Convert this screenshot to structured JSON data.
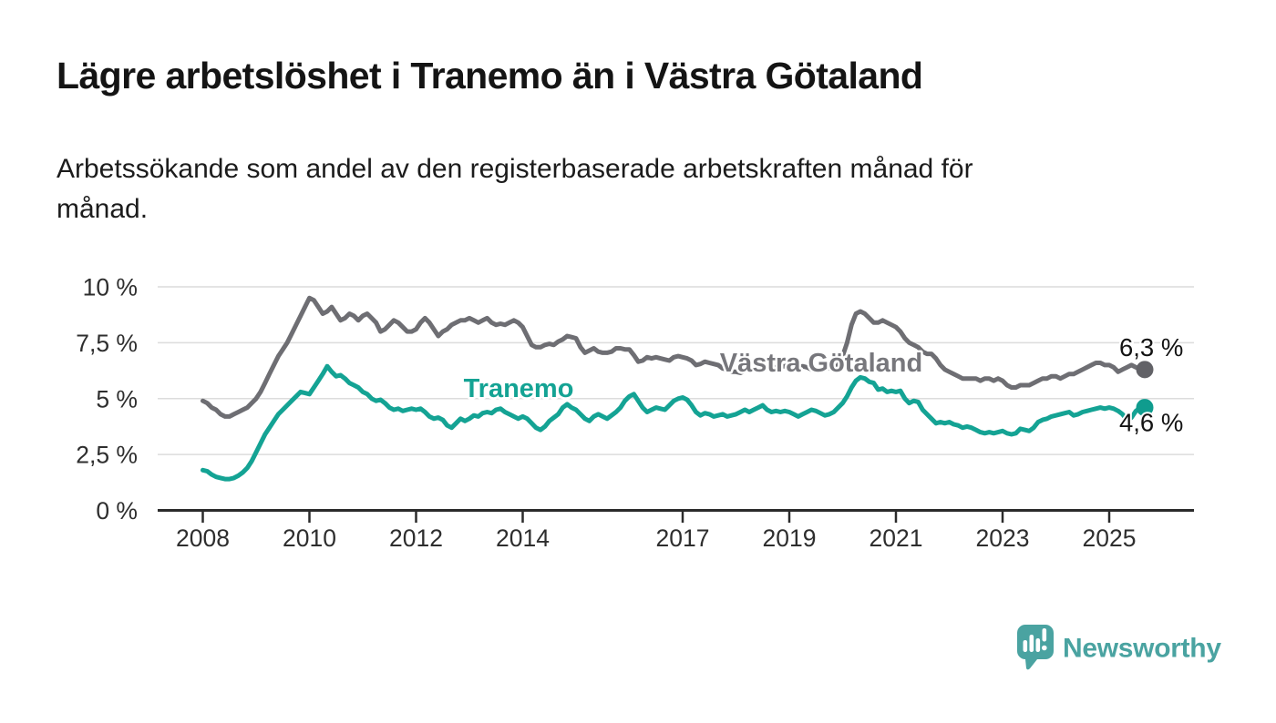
{
  "header": {
    "title": "Lägre arbetslöshet i Tranemo än i Västra Götaland",
    "subtitle_line1": "Arbetssökande som andel av den registerbaserade arbetskraften månad för",
    "subtitle_line2": "månad."
  },
  "chart_data": {
    "type": "line",
    "title": "Lägre arbetslöshet i Tranemo än i Västra Götaland",
    "subtitle": "Arbetssökande som andel av den registerbaserade arbetskraften månad för månad.",
    "x_unit": "months",
    "x_start_year": 2008,
    "x_start_month": 1,
    "x_end_year": 2025,
    "x_end_month": 9,
    "xlim": [
      2007.15,
      2026.6
    ],
    "ylim": [
      0,
      10.5
    ],
    "grid": true,
    "y_ticks": [
      {
        "value": 10,
        "label": "10 %"
      },
      {
        "value": 7.5,
        "label": "7,5 %"
      },
      {
        "value": 5,
        "label": "5 %"
      },
      {
        "value": 2.5,
        "label": "2,5 %"
      },
      {
        "value": 0,
        "label": "0 %"
      }
    ],
    "x_ticks": [
      {
        "value": 2008,
        "label": "2008"
      },
      {
        "value": 2010,
        "label": "2010"
      },
      {
        "value": 2012,
        "label": "2012"
      },
      {
        "value": 2014,
        "label": "2014"
      },
      {
        "value": 2017,
        "label": "2017"
      },
      {
        "value": 2019,
        "label": "2019"
      },
      {
        "value": 2021,
        "label": "2021"
      },
      {
        "value": 2023,
        "label": "2023"
      },
      {
        "value": 2025,
        "label": "2025"
      }
    ],
    "colors": {
      "grid": "#dcdcdc",
      "axis": "#2b2b2b",
      "tick_text": "#2e2e2e",
      "end_label_text": "#141414"
    },
    "series": [
      {
        "name": "Västra Götaland",
        "color": "#6e6e73",
        "dot_color": "#626267",
        "label_color": "#77777c",
        "end_label": "6,3 %",
        "end_value": 6.3,
        "values": [
          4.9,
          4.8,
          4.6,
          4.5,
          4.3,
          4.2,
          4.2,
          4.3,
          4.4,
          4.5,
          4.6,
          4.8,
          5.0,
          5.3,
          5.7,
          6.1,
          6.5,
          6.9,
          7.2,
          7.5,
          7.9,
          8.3,
          8.7,
          9.1,
          9.5,
          9.4,
          9.1,
          8.8,
          8.9,
          9.1,
          8.8,
          8.5,
          8.6,
          8.8,
          8.7,
          8.5,
          8.7,
          8.8,
          8.6,
          8.4,
          8.0,
          8.1,
          8.3,
          8.5,
          8.4,
          8.2,
          8.0,
          8.0,
          8.1,
          8.4,
          8.6,
          8.4,
          8.1,
          7.8,
          8.0,
          8.1,
          8.3,
          8.4,
          8.5,
          8.5,
          8.6,
          8.5,
          8.4,
          8.5,
          8.6,
          8.4,
          8.3,
          8.35,
          8.3,
          8.4,
          8.5,
          8.4,
          8.2,
          7.8,
          7.4,
          7.3,
          7.3,
          7.4,
          7.45,
          7.4,
          7.55,
          7.65,
          7.8,
          7.75,
          7.7,
          7.3,
          7.05,
          7.15,
          7.25,
          7.1,
          7.05,
          7.05,
          7.1,
          7.25,
          7.25,
          7.2,
          7.2,
          6.95,
          6.65,
          6.7,
          6.85,
          6.8,
          6.85,
          6.8,
          6.75,
          6.7,
          6.85,
          6.9,
          6.85,
          6.8,
          6.7,
          6.5,
          6.55,
          6.65,
          6.6,
          6.55,
          6.5,
          6.35,
          6.3,
          6.2,
          6.2,
          6.15,
          6.25,
          6.3,
          6.3,
          6.35,
          6.3,
          6.35,
          6.4,
          6.4,
          6.45,
          6.45,
          6.5,
          6.45,
          6.4,
          6.45,
          6.4,
          6.3,
          6.25,
          6.3,
          6.4,
          6.35,
          6.3,
          6.5,
          6.9,
          7.5,
          8.3,
          8.8,
          8.9,
          8.8,
          8.6,
          8.4,
          8.4,
          8.5,
          8.4,
          8.3,
          8.2,
          8.0,
          7.7,
          7.5,
          7.4,
          7.3,
          7.1,
          7.0,
          7.0,
          6.8,
          6.5,
          6.3,
          6.2,
          6.1,
          6.0,
          5.9,
          5.9,
          5.9,
          5.9,
          5.8,
          5.9,
          5.9,
          5.8,
          5.9,
          5.8,
          5.6,
          5.5,
          5.5,
          5.6,
          5.6,
          5.6,
          5.7,
          5.8,
          5.9,
          5.9,
          6.0,
          6.0,
          5.9,
          6.0,
          6.1,
          6.1,
          6.2,
          6.3,
          6.4,
          6.5,
          6.6,
          6.6,
          6.5,
          6.5,
          6.4,
          6.2,
          6.3,
          6.4,
          6.5,
          6.4,
          6.35,
          6.3
        ]
      },
      {
        "name": "Tranemo",
        "color": "#14a394",
        "dot_color": "#0f9c8e",
        "label_color": "#14a394",
        "end_label": "4,6 %",
        "end_value": 4.6,
        "values": [
          1.8,
          1.75,
          1.6,
          1.5,
          1.45,
          1.4,
          1.4,
          1.45,
          1.55,
          1.7,
          1.9,
          2.2,
          2.6,
          3.0,
          3.4,
          3.7,
          4.0,
          4.3,
          4.5,
          4.7,
          4.9,
          5.1,
          5.3,
          5.25,
          5.2,
          5.5,
          5.8,
          6.1,
          6.45,
          6.2,
          6.0,
          6.05,
          5.9,
          5.7,
          5.6,
          5.5,
          5.3,
          5.2,
          5.0,
          4.9,
          4.95,
          4.8,
          4.6,
          4.5,
          4.55,
          4.45,
          4.5,
          4.55,
          4.5,
          4.55,
          4.4,
          4.2,
          4.1,
          4.15,
          4.05,
          3.8,
          3.7,
          3.9,
          4.1,
          4.0,
          4.1,
          4.25,
          4.2,
          4.35,
          4.4,
          4.35,
          4.5,
          4.55,
          4.4,
          4.3,
          4.2,
          4.1,
          4.2,
          4.1,
          3.9,
          3.7,
          3.6,
          3.75,
          4.0,
          4.15,
          4.3,
          4.6,
          4.75,
          4.6,
          4.5,
          4.3,
          4.1,
          4.0,
          4.2,
          4.3,
          4.2,
          4.1,
          4.25,
          4.4,
          4.6,
          4.9,
          5.1,
          5.2,
          4.9,
          4.6,
          4.4,
          4.5,
          4.6,
          4.55,
          4.5,
          4.7,
          4.9,
          5.0,
          5.05,
          4.95,
          4.7,
          4.4,
          4.25,
          4.35,
          4.3,
          4.2,
          4.25,
          4.3,
          4.2,
          4.25,
          4.3,
          4.4,
          4.5,
          4.4,
          4.5,
          4.6,
          4.7,
          4.5,
          4.4,
          4.45,
          4.4,
          4.45,
          4.4,
          4.3,
          4.2,
          4.3,
          4.4,
          4.5,
          4.45,
          4.35,
          4.25,
          4.3,
          4.4,
          4.6,
          4.8,
          5.1,
          5.5,
          5.8,
          5.95,
          5.9,
          5.75,
          5.7,
          5.4,
          5.45,
          5.3,
          5.35,
          5.3,
          5.35,
          5.0,
          4.8,
          4.9,
          4.85,
          4.5,
          4.3,
          4.1,
          3.9,
          3.95,
          3.9,
          3.95,
          3.85,
          3.8,
          3.7,
          3.75,
          3.7,
          3.6,
          3.5,
          3.45,
          3.5,
          3.45,
          3.5,
          3.55,
          3.45,
          3.4,
          3.45,
          3.65,
          3.6,
          3.55,
          3.7,
          3.95,
          4.05,
          4.1,
          4.2,
          4.25,
          4.3,
          4.35,
          4.4,
          4.25,
          4.3,
          4.4,
          4.45,
          4.5,
          4.55,
          4.6,
          4.55,
          4.6,
          4.55,
          4.45,
          4.3,
          4.05,
          4.15,
          4.45,
          4.6,
          4.6
        ]
      }
    ],
    "legend_position": "inline-labels-on-lines"
  },
  "branding": {
    "logo_text": "Newsworthy",
    "logo_color": "#4aa3a1",
    "logo_icon": "speech-bubble-bar-chart-exclamation"
  }
}
